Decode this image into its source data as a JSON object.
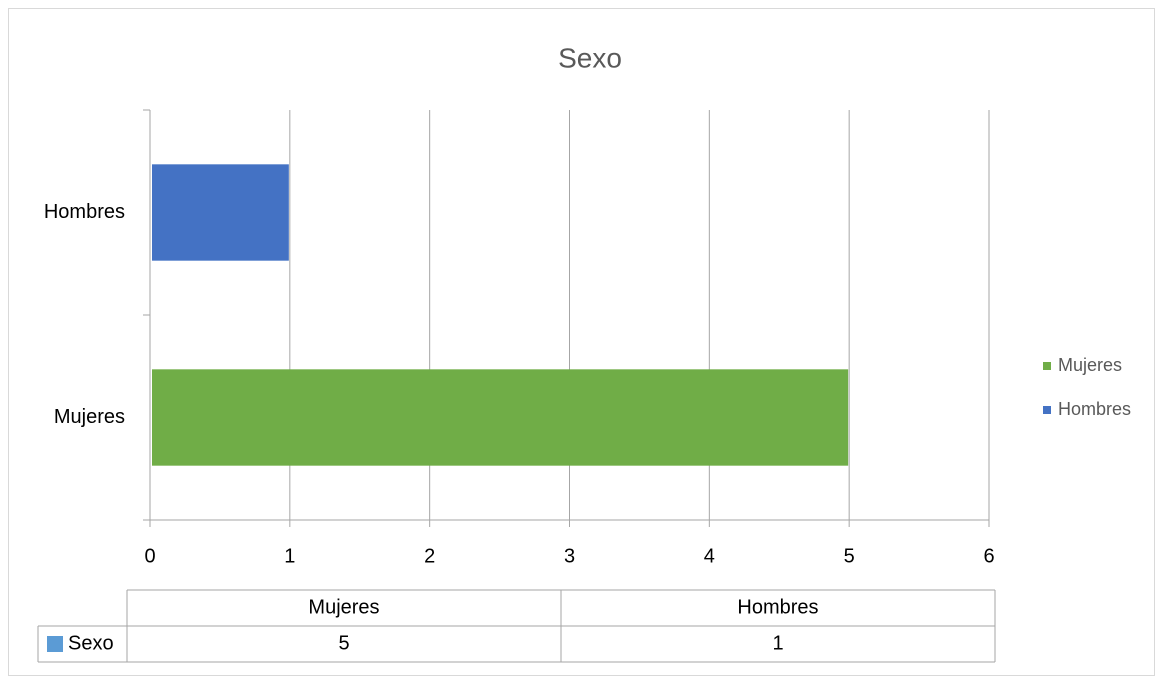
{
  "chart_data": {
    "type": "barh",
    "title": "Sexo",
    "categories": [
      "Mujeres",
      "Hombres"
    ],
    "series": [
      {
        "name": "Sexo",
        "color": "#5b9bd5",
        "values": [
          5,
          1
        ]
      }
    ],
    "bar_colors": [
      "#70ad47",
      "#4472c4"
    ],
    "xlim": [
      0,
      6
    ],
    "xticks": [
      0,
      1,
      2,
      3,
      4,
      5,
      6
    ],
    "grid": true,
    "legend": "right",
    "data_table": true
  }
}
